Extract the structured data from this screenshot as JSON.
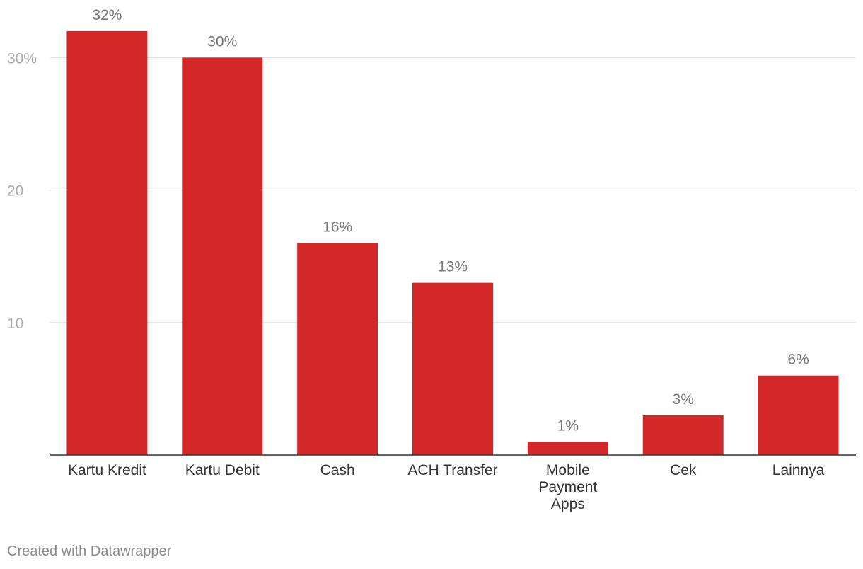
{
  "chart_data": {
    "type": "bar",
    "title": "",
    "xlabel": "",
    "ylabel": "",
    "categories": [
      "Kartu Kredit",
      "Kartu Debit",
      "Cash",
      "ACH Transfer",
      "Mobile Payment Apps",
      "Cek",
      "Lainnya"
    ],
    "values": [
      32,
      30,
      16,
      13,
      1,
      3,
      6
    ],
    "value_labels": [
      "32%",
      "30%",
      "16%",
      "13%",
      "1%",
      "3%",
      "6%"
    ],
    "ylim": [
      0,
      32
    ],
    "yticks": [
      10,
      20,
      30
    ],
    "ytick_labels": [
      "10",
      "20",
      "30%"
    ],
    "grid": true,
    "legend": "none",
    "bar_color": "#d42828"
  },
  "footer": {
    "credit": "Created with Datawrapper"
  },
  "colors": {
    "bar": "#d42828",
    "gridline": "#dddddd",
    "axis": "#333333",
    "tick_text": "#aaaaaa",
    "value_text": "#777777",
    "category_text": "#333333"
  }
}
